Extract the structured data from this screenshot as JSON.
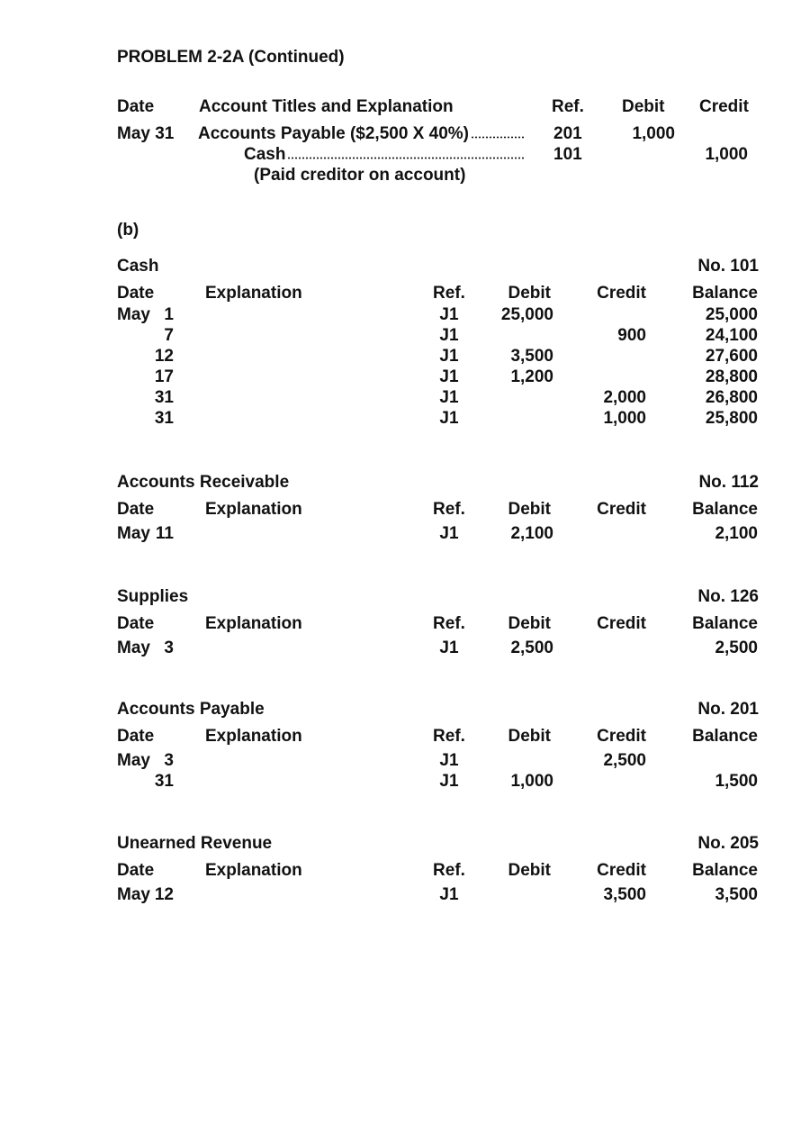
{
  "title": "PROBLEM 2-2A (Continued)",
  "journal": {
    "headers": {
      "date": "Date",
      "account": "Account Titles and Explanation",
      "ref": "Ref.",
      "debit": "Debit",
      "credit": "Credit"
    },
    "entry": {
      "date": "May 31",
      "debit_account": "Accounts Payable ($2,500 X 40%)",
      "debit_ref": "201",
      "debit_amount": "1,000",
      "credit_account": "Cash",
      "credit_ref": "101",
      "credit_amount": "1,000",
      "explanation": "(Paid creditor on account)"
    }
  },
  "part_label": "(b)",
  "ledger_headers": {
    "date": "Date",
    "explanation": "Explanation",
    "ref": "Ref.",
    "debit": "Debit",
    "credit": "Credit",
    "balance": "Balance"
  },
  "ledgers": [
    {
      "name": "Cash",
      "number": "No. 101",
      "rows": [
        {
          "month": "May",
          "day": "1",
          "ref": "J1",
          "debit": "25,000",
          "credit": "",
          "balance": "25,000"
        },
        {
          "month": "",
          "day": "7",
          "ref": "J1",
          "debit": "",
          "credit": "900",
          "balance": "24,100"
        },
        {
          "month": "",
          "day": "12",
          "ref": "J1",
          "debit": "3,500",
          "credit": "",
          "balance": "27,600"
        },
        {
          "month": "",
          "day": "17",
          "ref": "J1",
          "debit": "1,200",
          "credit": "",
          "balance": "28,800"
        },
        {
          "month": "",
          "day": "31",
          "ref": "J1",
          "debit": "",
          "credit": "2,000",
          "balance": "26,800"
        },
        {
          "month": "",
          "day": "31",
          "ref": "J1",
          "debit": "",
          "credit": "1,000",
          "balance": "25,800"
        }
      ]
    },
    {
      "name": "Accounts Receivable",
      "number": "No. 112",
      "rows": [
        {
          "month": "May",
          "day": "11",
          "ref": "J1",
          "debit": "2,100",
          "credit": "",
          "balance": "2,100"
        }
      ]
    },
    {
      "name": "Supplies",
      "number": "No. 126",
      "rows": [
        {
          "month": "May",
          "day": "3",
          "ref": "J1",
          "debit": "2,500",
          "credit": "",
          "balance": "2,500"
        }
      ]
    },
    {
      "name": "Accounts Payable",
      "number": "No. 201",
      "rows": [
        {
          "month": "May",
          "day": "3",
          "ref": "J1",
          "debit": "",
          "credit": "2,500",
          "balance": ""
        },
        {
          "month": "",
          "day": "31",
          "ref": "J1",
          "debit": "1,000",
          "credit": "",
          "balance": "1,500"
        }
      ]
    },
    {
      "name": "Unearned Revenue",
      "number": "No. 205",
      "rows": [
        {
          "month": "May",
          "day": "12",
          "ref": "J1",
          "debit": "",
          "credit": "3,500",
          "balance": "3,500"
        }
      ]
    }
  ]
}
